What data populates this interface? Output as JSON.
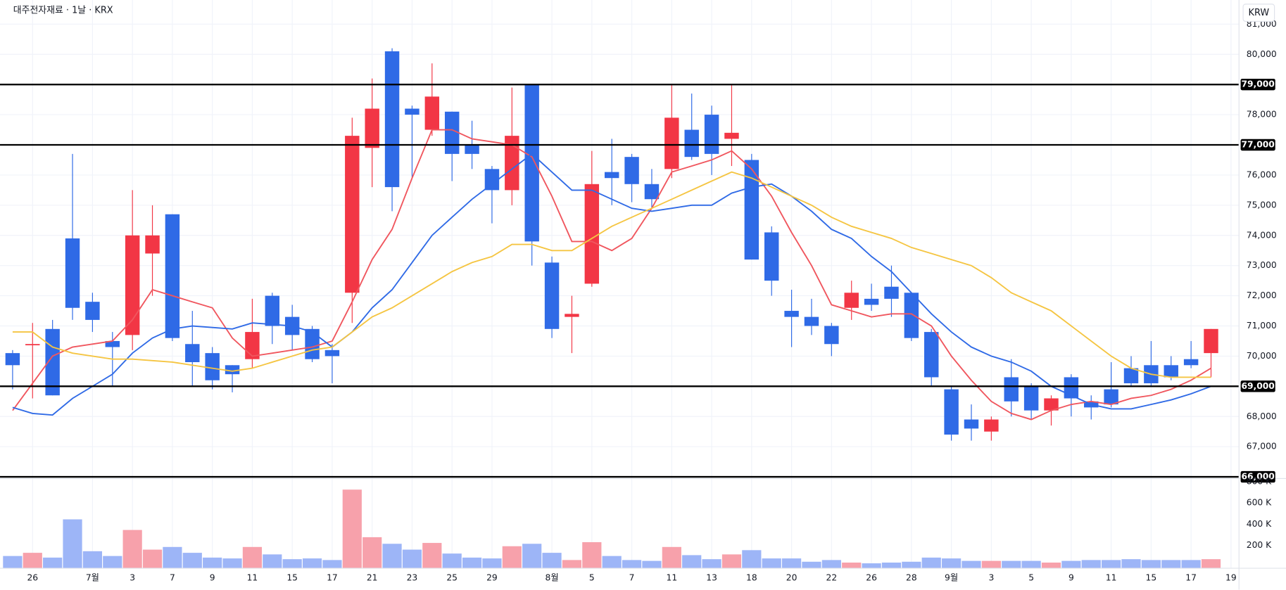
{
  "chart_data": [
    {
      "type": "candlestick",
      "title": "대주전자재료 · 1날 · KRX",
      "unit_button": "KRW",
      "up_color": "#f23645",
      "down_color": "#2f6ae6",
      "xlim": [
        -0.3,
        61.4
      ],
      "ylim": [
        66000,
        81800
      ],
      "yticks": [
        {
          "value": 81000,
          "label": "81,000"
        },
        {
          "value": 80000,
          "label": "80,000"
        },
        {
          "value": 78000,
          "label": "78,000"
        },
        {
          "value": 76000,
          "label": "76,000"
        },
        {
          "value": 75000,
          "label": "75,000"
        },
        {
          "value": 74000,
          "label": "74,000"
        },
        {
          "value": 73000,
          "label": "73,000"
        },
        {
          "value": 72000,
          "label": "72,000"
        },
        {
          "value": 71000,
          "label": "71,000"
        },
        {
          "value": 70000,
          "label": "70,000"
        },
        {
          "value": 68000,
          "label": "68,000"
        },
        {
          "value": 67000,
          "label": "67,000"
        }
      ],
      "grid": true,
      "hlines": [
        {
          "value": 79000,
          "label": "79,000"
        },
        {
          "value": 77000,
          "label": "77,000"
        },
        {
          "value": 69000,
          "label": "69,000"
        },
        {
          "value": 66000,
          "label": "66,000"
        }
      ],
      "open": [
        70100,
        70400,
        70900,
        73900,
        71800,
        70500,
        70700,
        73400,
        74700,
        70400,
        70100,
        69700,
        69900,
        72000,
        71300,
        70900,
        70200,
        72100,
        76900,
        80100,
        78200,
        77500,
        78100,
        77000,
        76200,
        75500,
        79000,
        73100,
        71300,
        72400,
        76100,
        76600,
        75700,
        76200,
        77500,
        78000,
        77200,
        76500,
        74100,
        71500,
        71300,
        71000,
        71600,
        71900,
        72300,
        72100,
        70800,
        68900,
        67900,
        67500,
        69300,
        69000,
        68200,
        69300,
        68500,
        68900,
        69600,
        69700,
        69700,
        69900,
        70100
      ],
      "high": [
        70200,
        71100,
        71200,
        76700,
        72100,
        70800,
        75500,
        75000,
        74700,
        71500,
        70300,
        69700,
        71900,
        72100,
        71700,
        71000,
        70400,
        77900,
        79200,
        80200,
        78300,
        79700,
        78100,
        77800,
        76300,
        78900,
        79000,
        73300,
        72000,
        76800,
        77200,
        76700,
        76200,
        79000,
        78700,
        78300,
        79000,
        76700,
        74300,
        72200,
        71900,
        71100,
        72500,
        72400,
        73000,
        72100,
        70900,
        69000,
        68400,
        68000,
        69900,
        69100,
        68700,
        69400,
        68700,
        69800,
        70000,
        70500,
        70000,
        70500,
        70900
      ],
      "low": [
        68900,
        68600,
        68700,
        71200,
        70800,
        69000,
        70200,
        72000,
        70500,
        69000,
        68900,
        68800,
        69600,
        70400,
        70200,
        69800,
        69100,
        71100,
        75600,
        74800,
        75900,
        77300,
        75800,
        76200,
        74400,
        75000,
        73000,
        70600,
        70100,
        72300,
        75000,
        75100,
        74900,
        75900,
        76500,
        76000,
        76300,
        73200,
        72000,
        70300,
        70700,
        70000,
        71200,
        71500,
        71300,
        70500,
        69000,
        67200,
        67200,
        67200,
        68000,
        67900,
        67700,
        68000,
        67900,
        68300,
        69000,
        69000,
        69200,
        69600,
        69300
      ],
      "close": [
        69700,
        70400,
        68700,
        71600,
        71200,
        70300,
        74000,
        74000,
        70600,
        69800,
        69200,
        69400,
        70800,
        71000,
        70700,
        69900,
        70000,
        77300,
        78200,
        75600,
        78000,
        78600,
        76700,
        76700,
        75500,
        77300,
        73800,
        70900,
        71400,
        75700,
        75900,
        75700,
        75200,
        77900,
        76600,
        76700,
        77400,
        73200,
        72500,
        71300,
        71000,
        70400,
        72100,
        71700,
        71900,
        70600,
        69300,
        67400,
        67600,
        67900,
        68500,
        68200,
        68600,
        68600,
        68300,
        68400,
        69100,
        69100,
        69300,
        69700,
        70900
      ],
      "lines": [
        {
          "color": "#f0565e",
          "values": [
            68200,
            69100,
            70000,
            70300,
            70400,
            70500,
            71200,
            72200,
            72000,
            71800,
            71600,
            70600,
            70000,
            70100,
            70200,
            70300,
            70500,
            71800,
            73200,
            74200,
            75900,
            77500,
            77500,
            77200,
            77100,
            77000,
            76600,
            75300,
            73800,
            73800,
            73500,
            73900,
            74900,
            76100,
            76300,
            76500,
            76800,
            76200,
            75300,
            74100,
            73000,
            71700,
            71500,
            71300,
            71400,
            71400,
            71000,
            70000,
            69200,
            68500,
            68100,
            67900,
            68200,
            68400,
            68500,
            68400,
            68600,
            68700,
            68900,
            69200,
            69600
          ]
        },
        {
          "color": "#2f6ae6",
          "values": [
            68300,
            68100,
            68050,
            68600,
            69000,
            69400,
            70100,
            70600,
            70900,
            71000,
            70950,
            70900,
            71100,
            71050,
            71000,
            70800,
            70300,
            70800,
            71600,
            72200,
            73100,
            74000,
            74600,
            75200,
            75700,
            76200,
            76700,
            76100,
            75500,
            75500,
            75200,
            74900,
            74800,
            74900,
            75000,
            75000,
            75400,
            75600,
            75700,
            75300,
            74800,
            74200,
            73900,
            73300,
            72800,
            72100,
            71400,
            70800,
            70300,
            70000,
            69800,
            69500,
            69000,
            68700,
            68400,
            68250,
            68250,
            68400,
            68550,
            68750,
            69000
          ]
        },
        {
          "color": "#f5c542",
          "values": [
            70800,
            70800,
            70300,
            70100,
            70000,
            69900,
            69900,
            69850,
            69800,
            69700,
            69600,
            69500,
            69600,
            69800,
            70000,
            70200,
            70300,
            70800,
            71300,
            71600,
            72000,
            72400,
            72800,
            73100,
            73300,
            73700,
            73700,
            73500,
            73500,
            73900,
            74300,
            74600,
            74900,
            75200,
            75500,
            75800,
            76100,
            75900,
            75600,
            75300,
            75000,
            74600,
            74300,
            74100,
            73900,
            73600,
            73400,
            73200,
            73000,
            72600,
            72100,
            71800,
            71500,
            71000,
            70500,
            70000,
            69600,
            69400,
            69300,
            69300,
            69300
          ]
        }
      ]
    },
    {
      "type": "bar",
      "up_color": "#f7a1ab",
      "down_color": "#9db5f7",
      "xlim": [
        -0.3,
        61.4
      ],
      "ylim": [
        0,
        822000
      ],
      "yticks": [
        {
          "value": 200000,
          "label": "200 K"
        },
        {
          "value": 400000,
          "label": "400 K"
        },
        {
          "value": 600000,
          "label": "600 K"
        },
        {
          "value": 800000,
          "label": "800 K"
        }
      ],
      "values": [
        100000,
        130000,
        85000,
        445000,
        145000,
        100000,
        345000,
        160000,
        185000,
        130000,
        85000,
        77000,
        185000,
        115000,
        70000,
        77000,
        62000,
        725000,
        277000,
        215000,
        160000,
        223000,
        123000,
        85000,
        77000,
        192000,
        215000,
        130000,
        62000,
        230000,
        100000,
        62000,
        54000,
        185000,
        108000,
        70000,
        115000,
        155000,
        77000,
        77000,
        46000,
        62000,
        38000,
        31000,
        38000,
        46000,
        85000,
        77000,
        54000,
        54000,
        54000,
        54000,
        38000,
        54000,
        62000,
        62000,
        70000,
        62000,
        62000,
        62000,
        70000
      ],
      "xticks": [
        {
          "value": 1,
          "label": "26"
        },
        {
          "value": 4,
          "label": "7월"
        },
        {
          "value": 6,
          "label": "3"
        },
        {
          "value": 8,
          "label": "7"
        },
        {
          "value": 10,
          "label": "9"
        },
        {
          "value": 12,
          "label": "11"
        },
        {
          "value": 14,
          "label": "15"
        },
        {
          "value": 16,
          "label": "17"
        },
        {
          "value": 18,
          "label": "21"
        },
        {
          "value": 20,
          "label": "23"
        },
        {
          "value": 22,
          "label": "25"
        },
        {
          "value": 24,
          "label": "29"
        },
        {
          "value": 27,
          "label": "8월"
        },
        {
          "value": 29,
          "label": "5"
        },
        {
          "value": 31,
          "label": "7"
        },
        {
          "value": 33,
          "label": "11"
        },
        {
          "value": 35,
          "label": "13"
        },
        {
          "value": 37,
          "label": "18"
        },
        {
          "value": 39,
          "label": "20"
        },
        {
          "value": 41,
          "label": "22"
        },
        {
          "value": 43,
          "label": "26"
        },
        {
          "value": 45,
          "label": "28"
        },
        {
          "value": 47,
          "label": "9월"
        },
        {
          "value": 49,
          "label": "3"
        },
        {
          "value": 51,
          "label": "5"
        },
        {
          "value": 53,
          "label": "9"
        },
        {
          "value": 55,
          "label": "11"
        },
        {
          "value": 57,
          "label": "15"
        },
        {
          "value": 59,
          "label": "17"
        },
        {
          "value": 61,
          "label": "19"
        }
      ]
    }
  ]
}
